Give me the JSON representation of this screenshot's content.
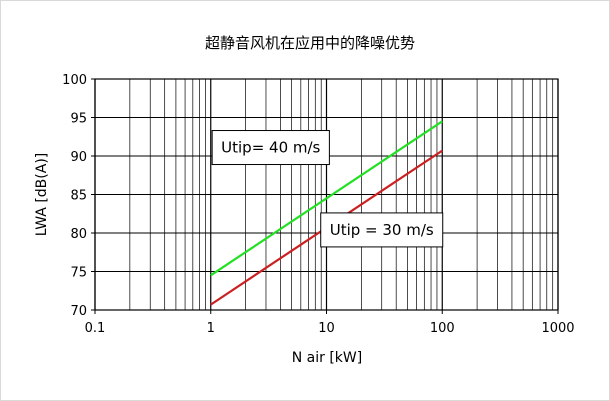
{
  "chart_data": {
    "type": "line",
    "title": "超静音风机在应用中的降噪优势",
    "xlabel": "N air [kW]",
    "ylabel": "LWA [dB(A)]",
    "x_scale": "log",
    "xlim": [
      0.1,
      1000
    ],
    "ylim": [
      70,
      100
    ],
    "x_ticks": [
      0.1,
      1,
      10,
      100,
      1000
    ],
    "x_tick_labels": [
      "0.1",
      "1",
      "10",
      "100",
      "1000"
    ],
    "y_ticks": [
      70,
      75,
      80,
      85,
      90,
      95,
      100
    ],
    "y_tick_labels": [
      "70",
      "75",
      "80",
      "85",
      "90",
      "95",
      "100"
    ],
    "grid": true,
    "legend": "none",
    "series": [
      {
        "color": "#22e022",
        "x": [
          1,
          100
        ],
        "y": [
          74.5,
          94.5
        ]
      },
      {
        "color": "#cc1f1f",
        "x": [
          1,
          100
        ],
        "y": [
          70.7,
          90.7
        ]
      }
    ],
    "annotations": [
      {
        "text": "Utip= 40 m/s",
        "x": 3.3,
        "y": 91.1
      },
      {
        "text": "Utip = 30 m/s",
        "x": 30,
        "y": 80.4
      }
    ]
  }
}
